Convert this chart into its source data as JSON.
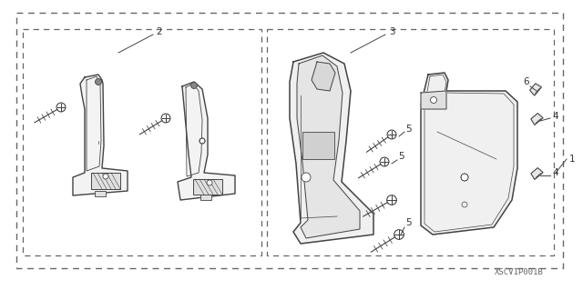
{
  "bg_color": "#ffffff",
  "border_color": "#666666",
  "line_color": "#444444",
  "text_color": "#333333",
  "label_fontsize": 7.5,
  "watermark": "XSCV1P001B"
}
